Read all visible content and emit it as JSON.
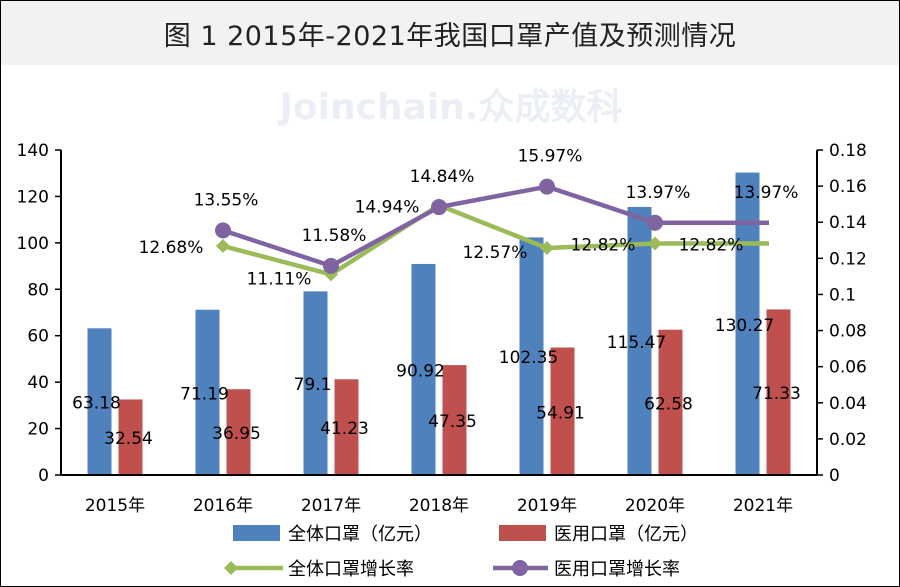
{
  "chart_data": {
    "type": "bar",
    "title": "图 1 2015年-2021年我国口罩产值及预测情况",
    "categories": [
      "2015年",
      "2016年",
      "2017年",
      "2018年",
      "2019年",
      "2020年",
      "2021年"
    ],
    "bar_series": [
      {
        "name": "全体口罩（亿元）",
        "color": "#4f81bd",
        "values": [
          63.18,
          71.19,
          79.1,
          90.92,
          102.35,
          115.47,
          130.27
        ],
        "labels": [
          "63.18",
          "71.19",
          "79.1",
          "90.92",
          "102.35",
          "115.47",
          "130.27"
        ]
      },
      {
        "name": "医用口罩（亿元）",
        "color": "#c0504d",
        "values": [
          32.54,
          36.95,
          41.23,
          47.35,
          54.91,
          62.58,
          71.33
        ],
        "labels": [
          "32.54",
          "36.95",
          "41.23",
          "47.35",
          "54.91",
          "62.58",
          "71.33"
        ]
      }
    ],
    "line_series": [
      {
        "name": "全体口罩增长率",
        "color": "#9bbb59",
        "marker": "diamond",
        "axis": "right",
        "values": [
          null,
          0.1268,
          0.1111,
          0.1494,
          0.1257,
          0.1282,
          0.1282
        ],
        "labels": [
          "",
          "12.68%",
          "11.11%",
          "14.94%",
          "12.57%",
          "12.82%",
          "12.82%"
        ]
      },
      {
        "name": "医用口罩增长率",
        "color": "#8064a2",
        "marker": "circle",
        "axis": "right",
        "values": [
          null,
          0.1355,
          0.1158,
          0.1484,
          0.1597,
          0.1397,
          0.1397
        ],
        "labels": [
          "",
          "13.55%",
          "11.58%",
          "14.84%",
          "15.97%",
          "13.97%",
          "13.97%"
        ]
      }
    ],
    "y_left": {
      "range": [
        0,
        140
      ],
      "ticks": [
        "0",
        "20",
        "40",
        "60",
        "80",
        "100",
        "120",
        "140"
      ]
    },
    "y_right": {
      "range": [
        0,
        0.18
      ],
      "ticks": [
        "0",
        "0.02",
        "0.04",
        "0.06",
        "0.08",
        "0.1",
        "0.12",
        "0.14",
        "0.16",
        "0.18"
      ]
    },
    "grid": false,
    "legend_placement": "bottom"
  },
  "watermark": "Joinchain.众成数科"
}
